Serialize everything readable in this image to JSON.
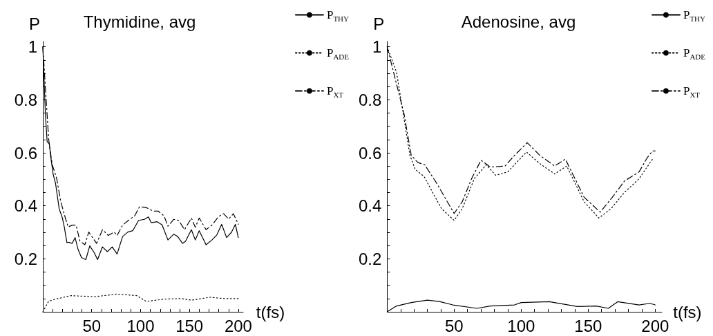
{
  "chart_data": [
    {
      "type": "line",
      "title": "Thymidine, avg",
      "xlabel": "t(fs)",
      "ylabel": "P",
      "xlim": [
        0,
        205
      ],
      "ylim": [
        0,
        1.02
      ],
      "xticks": [
        {
          "value": 10,
          "label": null
        },
        {
          "value": 20,
          "label": null
        },
        {
          "value": 30,
          "label": null
        },
        {
          "value": 40,
          "label": null
        },
        50,
        {
          "value": 60,
          "label": null
        },
        {
          "value": 70,
          "label": null
        },
        {
          "value": 80,
          "label": null
        },
        {
          "value": 90,
          "label": null
        },
        100,
        {
          "value": 110,
          "label": null
        },
        {
          "value": 120,
          "label": null
        },
        {
          "value": 130,
          "label": null
        },
        {
          "value": 140,
          "label": null
        },
        150,
        {
          "value": 160,
          "label": null
        },
        {
          "value": 170,
          "label": null
        },
        {
          "value": 180,
          "label": null
        },
        {
          "value": 190,
          "label": null
        },
        200
      ],
      "yticks": [
        {
          "value": 0.05,
          "label": null
        },
        {
          "value": 0.1,
          "label": null
        },
        {
          "value": 0.15,
          "label": null
        },
        0.2,
        {
          "value": 0.25,
          "label": null
        },
        {
          "value": 0.3,
          "label": null
        },
        {
          "value": 0.35,
          "label": null
        },
        0.4,
        {
          "value": 0.45,
          "label": null
        },
        {
          "value": 0.5,
          "label": null
        },
        {
          "value": 0.55,
          "label": null
        },
        0.6,
        {
          "value": 0.65,
          "label": null
        },
        {
          "value": 0.7,
          "label": null
        },
        {
          "value": 0.75,
          "label": null
        },
        0.8,
        {
          "value": 0.85,
          "label": null
        },
        {
          "value": 0.9,
          "label": null
        },
        {
          "value": 0.95,
          "label": null
        },
        1
      ],
      "grid": false,
      "legend": "top right",
      "marker": "none",
      "series": [
        {
          "name": "P$_{THY}$",
          "color": "#000000",
          "line_style": "solid",
          "x": [
            0,
            2.6,
            4.4,
            6.7,
            7.9,
            10.5,
            13,
            16.7,
            20,
            22,
            24.6,
            27,
            30,
            33,
            36,
            39.5,
            44,
            48,
            52.6,
            56,
            61,
            66,
            71,
            76,
            81.6,
            87,
            92,
            98,
            104,
            108,
            111,
            117,
            122,
            128,
            134,
            138,
            143,
            146,
            152,
            156,
            160,
            167,
            173,
            178,
            183,
            188,
            193,
            197,
            200
          ],
          "values": [
            1.0,
            0.747,
            0.642,
            0.633,
            0.59,
            0.52,
            0.485,
            0.389,
            0.354,
            0.319,
            0.262,
            0.262,
            0.258,
            0.28,
            0.236,
            0.205,
            0.197,
            0.249,
            0.223,
            0.197,
            0.245,
            0.227,
            0.245,
            0.218,
            0.284,
            0.301,
            0.306,
            0.345,
            0.349,
            0.358,
            0.336,
            0.34,
            0.328,
            0.271,
            0.293,
            0.284,
            0.258,
            0.266,
            0.31,
            0.271,
            0.306,
            0.253,
            0.271,
            0.29,
            0.33,
            0.28,
            0.3,
            0.33,
            0.28
          ]
        },
        {
          "name": "P$_{ADE}$",
          "color": "#000000",
          "line_style": "dotted",
          "x": [
            0,
            6,
            13,
            29,
            53,
            76,
            96,
            106,
            124,
            141,
            152,
            171,
            185,
            200
          ],
          "values": [
            0,
            0.04,
            0.048,
            0.061,
            0.057,
            0.067,
            0.061,
            0.039,
            0.048,
            0.05,
            0.044,
            0.055,
            0.05,
            0.05
          ]
        },
        {
          "name": "P$_{XT}$",
          "color": "#000000",
          "line_style": "dashed",
          "x": [
            0,
            6,
            9.6,
            14,
            18.4,
            23,
            26,
            30,
            34,
            38,
            43,
            47,
            55,
            61,
            67,
            73,
            76,
            81.6,
            89,
            94,
            99,
            106,
            113,
            118,
            124,
            128,
            134,
            139,
            145,
            152,
            156,
            160,
            167,
            173,
            180,
            185,
            190,
            195,
            200
          ],
          "values": [
            1.0,
            0.65,
            0.555,
            0.506,
            0.415,
            0.354,
            0.32,
            0.327,
            0.327,
            0.266,
            0.253,
            0.301,
            0.258,
            0.31,
            0.288,
            0.301,
            0.288,
            0.327,
            0.349,
            0.362,
            0.397,
            0.393,
            0.38,
            0.38,
            0.362,
            0.323,
            0.349,
            0.345,
            0.31,
            0.354,
            0.319,
            0.354,
            0.31,
            0.327,
            0.36,
            0.37,
            0.35,
            0.37,
            0.33
          ]
        }
      ]
    },
    {
      "type": "line",
      "title": "Adenosine, avg",
      "xlabel": "t(fs)",
      "ylabel": "P",
      "xlim": [
        0,
        205
      ],
      "ylim": [
        0,
        1.02
      ],
      "xticks": [
        {
          "value": 10,
          "label": null
        },
        {
          "value": 20,
          "label": null
        },
        {
          "value": 30,
          "label": null
        },
        {
          "value": 40,
          "label": null
        },
        50,
        {
          "value": 60,
          "label": null
        },
        {
          "value": 70,
          "label": null
        },
        {
          "value": 80,
          "label": null
        },
        {
          "value": 90,
          "label": null
        },
        100,
        {
          "value": 110,
          "label": null
        },
        {
          "value": 120,
          "label": null
        },
        {
          "value": 130,
          "label": null
        },
        {
          "value": 140,
          "label": null
        },
        150,
        {
          "value": 160,
          "label": null
        },
        {
          "value": 170,
          "label": null
        },
        {
          "value": 180,
          "label": null
        },
        {
          "value": 190,
          "label": null
        },
        200
      ],
      "yticks": [
        {
          "value": 0.05,
          "label": null
        },
        {
          "value": 0.1,
          "label": null
        },
        {
          "value": 0.15,
          "label": null
        },
        0.2,
        {
          "value": 0.25,
          "label": null
        },
        {
          "value": 0.3,
          "label": null
        },
        {
          "value": 0.35,
          "label": null
        },
        0.4,
        {
          "value": 0.45,
          "label": null
        },
        {
          "value": 0.5,
          "label": null
        },
        {
          "value": 0.55,
          "label": null
        },
        0.6,
        {
          "value": 0.65,
          "label": null
        },
        {
          "value": 0.7,
          "label": null
        },
        {
          "value": 0.75,
          "label": null
        },
        0.8,
        {
          "value": 0.85,
          "label": null
        },
        {
          "value": 0.9,
          "label": null
        },
        {
          "value": 0.95,
          "label": null
        },
        1
      ],
      "grid": false,
      "legend": "top right",
      "marker": "none",
      "series": [
        {
          "name": "P$_{THY}$",
          "color": "#000000",
          "line_style": "solid",
          "x": [
            0,
            7,
            18,
            30,
            39,
            49,
            67,
            77,
            95,
            100,
            121,
            142,
            156,
            165,
            172,
            188,
            196,
            200
          ],
          "values": [
            0,
            0.022,
            0.035,
            0.044,
            0.039,
            0.026,
            0.013,
            0.022,
            0.026,
            0.035,
            0.038,
            0.02,
            0.022,
            0.013,
            0.038,
            0.026,
            0.032,
            0.026
          ]
        },
        {
          "name": "P$_{ADE}$",
          "color": "#000000",
          "line_style": "dotted",
          "x": [
            0,
            7,
            12.6,
            17,
            21,
            27.5,
            34,
            40.6,
            50,
            56,
            65,
            74,
            81,
            90,
            104,
            114,
            125,
            134,
            147,
            158,
            167,
            177,
            188,
            198
          ],
          "values": [
            1.0,
            0.904,
            0.729,
            0.59,
            0.537,
            0.511,
            0.45,
            0.389,
            0.345,
            0.389,
            0.502,
            0.555,
            0.515,
            0.528,
            0.603,
            0.559,
            0.52,
            0.55,
            0.415,
            0.354,
            0.389,
            0.45,
            0.502,
            0.576
          ]
        },
        {
          "name": "P$_{XT}$",
          "color": "#000000",
          "line_style": "dashed",
          "x": [
            0,
            12.6,
            18,
            23,
            28,
            37,
            43,
            50,
            56,
            63,
            70,
            77,
            88,
            95,
            104.5,
            114,
            125,
            133,
            147,
            159,
            168,
            177,
            188,
            194,
            198,
            200
          ],
          "values": [
            1.0,
            0.747,
            0.59,
            0.563,
            0.555,
            0.485,
            0.432,
            0.371,
            0.415,
            0.502,
            0.572,
            0.546,
            0.55,
            0.59,
            0.638,
            0.59,
            0.55,
            0.576,
            0.432,
            0.376,
            0.432,
            0.493,
            0.528,
            0.581,
            0.607,
            0.607
          ]
        }
      ]
    }
  ]
}
